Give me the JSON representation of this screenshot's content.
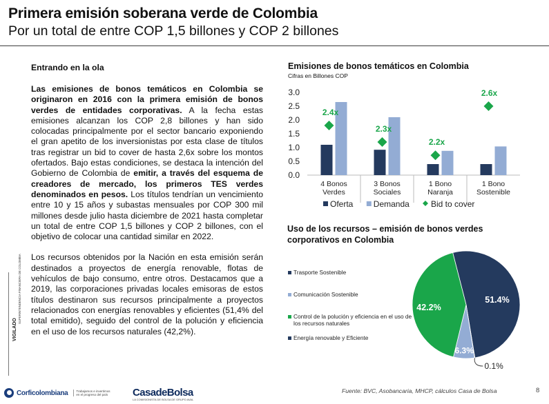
{
  "header": {
    "title": "Primera emisión soberana verde de Colombia",
    "subtitle": "Por un total de entre COP 1,5 billones y COP 2 billones"
  },
  "article": {
    "heading": "Entrando en  la ola",
    "p1_bold": "Las emisiones de bonos temáticos en Colombia se originaron en 2016 con la primera emisión de bonos verdes de entidades corporativas.",
    "p1_text_a": " A la fecha estas emisiones alcanzan los COP 2,8 billones y han sido colocadas principalmente por el sector bancario exponiendo el gran apetito de los inversionistas por esta clase de títulos tras registrar un bid to cover de hasta 2,6x sobre los montos ofertados. Bajo estas condiciones, se destaca la intención del Gobierno de Colombia de ",
    "p1_bold_b": "emitir, a través del esquema de creadores de mercado, los primeros TES verdes denominados en pesos.",
    "p1_text_b": " Los títulos tendrían un vencimiento entre 10 y 15 años y subastas mensuales por COP 300 mil millones desde julio hasta diciembre de 2021 hasta completar un total de entre COP 1,5 billones y COP 2 billones, con el objetivo de colocar una cantidad similar en 2022.",
    "p2": "Los recursos obtenidos por la Nación en esta emisión serán destinados a proyectos de energía renovable, flotas de vehículos de bajo consumo, entre otros. Destacamos que a 2019, las corporaciones privadas locales emisoras de estos títulos destinaron sus recursos principalmente a proyectos relacionados con energías renovables y eficientes (51,4% del total emitido), seguido del control de la polución y eficiencia en el uso de los recursos naturales (42,2%)."
  },
  "sidebar": {
    "vigilado": "VIGILADO",
    "superintendencia": "SUPERINTENDENCIA FINANCIERA DE COLOMBIA"
  },
  "footer": {
    "logo1_name": "Corficolombiana",
    "logo1_tag": "Trabajamos e invertimos en el progreso del país",
    "logo2_name": "CasadeBolsa",
    "logo2_sub": "LA COMISIONISTA DE BOLSA DE GRUPO AVAL",
    "source": "Fuente: BVC, Asobancaria, MHCP, cálculos Casa de Bolsa",
    "page": "8"
  },
  "charts": {
    "bar_title": "Emisiones de bonos temáticos en Colombia",
    "bar_subtitle": "Cifras en Billones COP",
    "pie_title": "Uso de los recursos – emisión de bonos verdes corporativos en Colombia"
  },
  "chart_data": [
    {
      "type": "bar",
      "title": "Emisiones de bonos temáticos en Colombia",
      "subtitle": "Cifras en Billones COP",
      "categories": [
        [
          "4 Bonos",
          "Verdes"
        ],
        [
          "3 Bonos",
          "Sociales"
        ],
        [
          "1 Bono",
          "Naranja"
        ],
        [
          "1 Bono",
          "Sostenible"
        ]
      ],
      "ylim": [
        0,
        3.0
      ],
      "yticks": [
        "0.0",
        "0.5",
        "1.0",
        "1.5",
        "2.0",
        "2.5",
        "3.0"
      ],
      "grid": false,
      "legend": "bottom",
      "series": [
        {
          "name": "Oferta",
          "values": [
            1.1,
            0.92,
            0.4,
            0.4
          ],
          "color": "#243a5e"
        },
        {
          "name": "Demanda",
          "values": [
            2.65,
            2.1,
            0.88,
            1.04
          ],
          "color": "#93acd4"
        }
      ],
      "markers": {
        "name": "Bid to cover",
        "color": "#1aa64a",
        "values": [
          1.8,
          1.2,
          0.72,
          2.5
        ],
        "labels": [
          "2.4x",
          "2.3x",
          "2.2x",
          "2.6x"
        ]
      }
    },
    {
      "type": "pie",
      "title": "Uso de los recursos – emisión de bonos verdes corporativos en Colombia",
      "legend": "left",
      "slices": [
        {
          "name": "Energía renovable y Eficiente",
          "value": 51.4,
          "label": "51.4%",
          "color": "#243a5e"
        },
        {
          "name": "Transporte Sostenible",
          "value": 0.1,
          "label": "0.1%",
          "color": "#243a5e"
        },
        {
          "name": "Comunicación Sostenible",
          "value": 6.3,
          "label": "6.3%",
          "color": "#93acd4"
        },
        {
          "name": "Control de la polución y eficiencia en el uso de los recursos naturales",
          "value": 42.2,
          "label": "42.2%",
          "color": "#1aa64a"
        }
      ],
      "legend_items": [
        {
          "name": "Trasporte Sostenible",
          "color": "#243a5e"
        },
        {
          "name": "Comunicación Sostenible",
          "color": "#93acd4"
        },
        {
          "name": "Control de la polución y eficiencia en el uso de los recursos naturales",
          "color": "#1aa64a"
        },
        {
          "name": "Energía renovable y Eficiente",
          "color": "#243a5e"
        }
      ]
    }
  ]
}
